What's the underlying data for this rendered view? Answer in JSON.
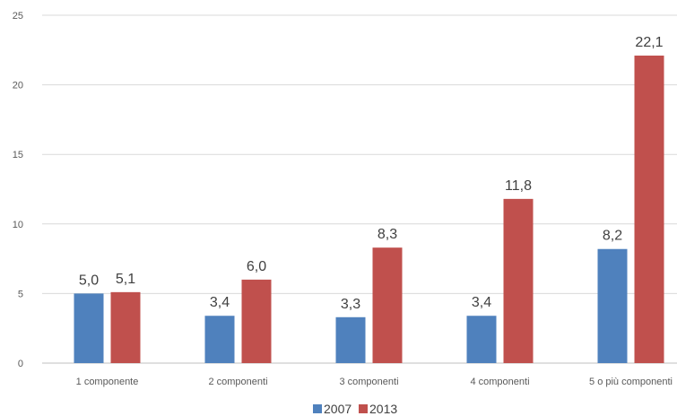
{
  "chart_data": {
    "type": "bar",
    "title": "",
    "xlabel": "",
    "ylabel": "",
    "categories": [
      "1 componente",
      "2 componenti",
      "3 componenti",
      "4 componenti",
      "5 o più componenti"
    ],
    "series": [
      {
        "name": "2007",
        "values": [
          5.0,
          3.4,
          3.3,
          3.4,
          8.2
        ],
        "labels": [
          "5,0",
          "3,4",
          "3,3",
          "3,4",
          "8,2"
        ],
        "color": "#4f81bd"
      },
      {
        "name": "2013",
        "values": [
          5.1,
          6.0,
          8.3,
          11.8,
          22.1
        ],
        "labels": [
          "5,1",
          "6,0",
          "8,3",
          "11,8",
          "22,1"
        ],
        "color": "#c0504d"
      }
    ],
    "ylim": [
      0,
      25
    ],
    "yticks": [
      0,
      5,
      10,
      15,
      20,
      25
    ],
    "grid": true,
    "legend": "bottom",
    "colors": {
      "gridline": "#d9d9d9",
      "axis": "#bfbfbf"
    }
  }
}
